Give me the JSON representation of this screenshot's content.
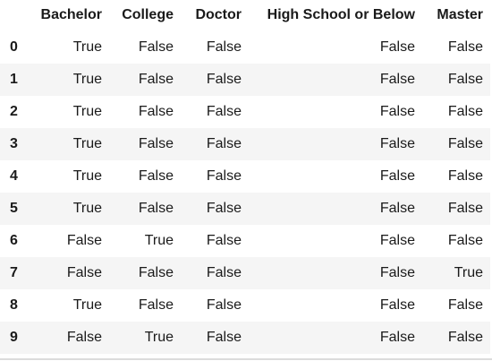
{
  "table": {
    "columns": [
      "Bachelor",
      "College",
      "Doctor",
      "High School or Below",
      "Master"
    ],
    "rows": [
      {
        "index": "0",
        "cells": [
          "True",
          "False",
          "False",
          "False",
          "False"
        ]
      },
      {
        "index": "1",
        "cells": [
          "True",
          "False",
          "False",
          "False",
          "False"
        ]
      },
      {
        "index": "2",
        "cells": [
          "True",
          "False",
          "False",
          "False",
          "False"
        ]
      },
      {
        "index": "3",
        "cells": [
          "True",
          "False",
          "False",
          "False",
          "False"
        ]
      },
      {
        "index": "4",
        "cells": [
          "True",
          "False",
          "False",
          "False",
          "False"
        ]
      },
      {
        "index": "5",
        "cells": [
          "True",
          "False",
          "False",
          "False",
          "False"
        ]
      },
      {
        "index": "6",
        "cells": [
          "False",
          "True",
          "False",
          "False",
          "False"
        ]
      },
      {
        "index": "7",
        "cells": [
          "False",
          "False",
          "False",
          "False",
          "True"
        ]
      },
      {
        "index": "8",
        "cells": [
          "True",
          "False",
          "False",
          "False",
          "False"
        ]
      },
      {
        "index": "9",
        "cells": [
          "False",
          "True",
          "False",
          "False",
          "False"
        ]
      }
    ]
  },
  "colors": {
    "text": "#1a1a1a",
    "row_stripe": "#f5f5f5",
    "background": "#ffffff"
  }
}
